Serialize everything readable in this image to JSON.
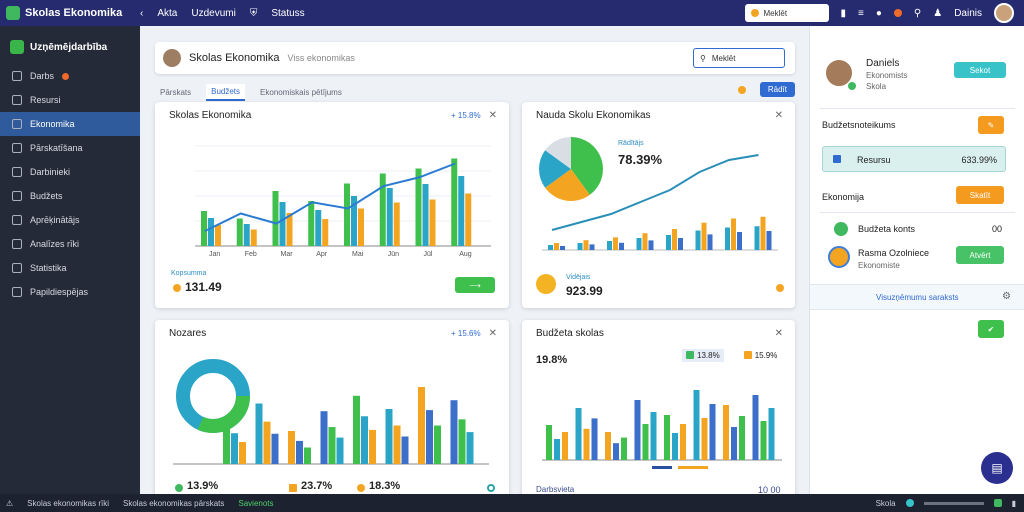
{
  "app": {
    "title": "Skolas Ekonomika"
  },
  "topnav": [
    "Akta",
    "Uzdevumi",
    "Statuss"
  ],
  "top_search": {
    "placeholder": "Meklēt"
  },
  "top_right": {
    "user": "Dainis"
  },
  "sidebar": {
    "title": "Uzņēmējdarbība",
    "items": [
      {
        "label": "Darbs"
      },
      {
        "label": "Resursi"
      },
      {
        "label": "Ekonomika"
      },
      {
        "label": "Pārskatīšana"
      },
      {
        "label": "Darbinieki"
      },
      {
        "label": "Budžets"
      },
      {
        "label": "Aprēķinātājs"
      },
      {
        "label": "Analīzes rīki"
      },
      {
        "label": "Statistika"
      },
      {
        "label": "Papildiespējas"
      }
    ]
  },
  "header": {
    "title": "Skolas Ekonomika",
    "subtitle": "Viss ekonomikas",
    "search": "Meklēt"
  },
  "tabs": [
    "Pārskats",
    "Budžets",
    "Ekonomiskais pētījums"
  ],
  "tabs_action": "Rādīt",
  "cards": {
    "c1": {
      "title": "Skolas Ekonomika",
      "ctrl": "+ 15.8%",
      "value": "131.49",
      "label": "Kopsumma",
      "xlabels": [
        "Jan",
        "Feb",
        "Mar",
        "Apr",
        "Mai",
        "Jūn",
        "Jūl",
        "Aug"
      ]
    },
    "c2": {
      "title": "Nauda Skolu Ekonomikas",
      "value": "78.39%",
      "label": "Rādītājs",
      "value2": "923.99",
      "label2": "Vidējais"
    },
    "c3": {
      "title": "Nozares",
      "ctrl": "+ 15.6%",
      "v1": "13.9%",
      "v2": "23.7%",
      "v3": "18.3%"
    },
    "c4": {
      "title": "Budžeta skolas",
      "value": "19.8%",
      "foot": "Darbsvieta",
      "foot_value": "10 00",
      "legend": [
        "13.8%",
        "15.9%"
      ]
    }
  },
  "right_panel": {
    "user_name": "Daniels",
    "user_role": "Ekonomists",
    "user_sub": "Skola",
    "follow": "Sekot",
    "r1": "Budžetsnoteikums",
    "r2": {
      "label": "Resursu",
      "value": "633.99%"
    },
    "r3": "Ekonomija",
    "r3_btn": "Skatīt",
    "r4": {
      "label": "Budžeta konts",
      "value": "00"
    },
    "r5": {
      "name": "Rasma Ozolniece",
      "sub": "Ekonomiste",
      "btn": "Atvērt"
    },
    "r6": "Visuzņēmumu saraksts"
  },
  "footer": {
    "left": "Skolas ekonomikas rīki",
    "mid": "Skolas ekonomikas pārskats",
    "status": "Savienots",
    "right": "Skola"
  },
  "chart_data": [
    {
      "type": "bar",
      "series": [
        {
          "values": [
            28,
            22,
            44,
            36,
            50,
            58,
            62,
            70
          ]
        }
      ],
      "line": [
        12,
        26,
        18,
        35,
        30,
        48,
        55,
        66
      ]
    },
    {
      "type": "line",
      "values": [
        20,
        28,
        36,
        48,
        60,
        78,
        90,
        95
      ]
    },
    {
      "type": "bar",
      "values": [
        40,
        55,
        30,
        48,
        62,
        50,
        70,
        58
      ]
    },
    {
      "type": "bar",
      "values": [
        35,
        52,
        28,
        60,
        45,
        70,
        55,
        65
      ]
    }
  ]
}
